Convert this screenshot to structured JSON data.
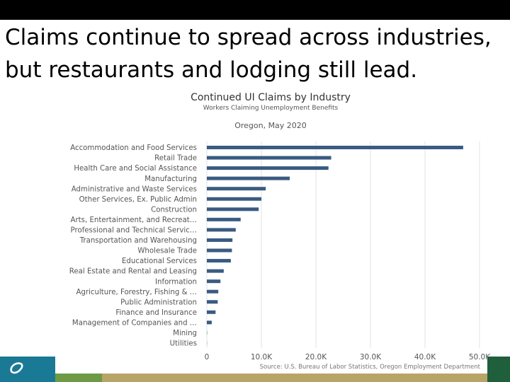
{
  "slide": {
    "title": "Claims continue to spread across industries, but restaurants and lodging still lead."
  },
  "colors": {
    "bar": "#3a5b82",
    "grid": "#e3e3e3",
    "axis_text": "#555555",
    "footer_teal": "#1a7a95",
    "footer_gold": "#b9a468",
    "footer_green": "#6f9a45",
    "footer_dark_green": "#1f5f3b"
  },
  "icons": {
    "footer_logo": "swoosh-logo-icon"
  },
  "chart_data": {
    "type": "bar",
    "orientation": "horizontal",
    "title": "Continued UI Claims by Industry",
    "subtitle": "Workers Claiming Unemployment Benefits",
    "subtitle2": "Oregon, May 2020",
    "source": "Source: U.S. Bureau of Labor Statistics, Oregon Employment Department",
    "categories": [
      "Accommodation and Food Services",
      "Retail Trade",
      "Health Care and Social Assistance",
      "Manufacturing",
      "Administrative and Waste Services",
      "Other Services, Ex. Public Admin",
      "Construction",
      "Arts, Entertainment, and Recreat…",
      "Professional and Technical Servic…",
      "Transportation and Warehousing",
      "Wholesale Trade",
      "Educational Services",
      "Real Estate and Rental and Leasing",
      "Information",
      "Agriculture, Forestry, Fishing & …",
      "Public Administration",
      "Finance and Insurance",
      "Management of Companies and …",
      "Mining",
      "Utilities"
    ],
    "values": [
      47000,
      22800,
      22300,
      15200,
      10800,
      10000,
      9500,
      6200,
      5300,
      4700,
      4600,
      4400,
      3100,
      2500,
      2100,
      2000,
      1600,
      900,
      50,
      30
    ],
    "xlim": [
      0,
      50000
    ],
    "xticks": [
      0,
      10000,
      20000,
      30000,
      40000,
      50000
    ],
    "xtick_labels": [
      "0",
      "10.0K",
      "20.0K",
      "30.0K",
      "40.0K",
      "50.0K"
    ],
    "grid": true,
    "legend": "none"
  }
}
